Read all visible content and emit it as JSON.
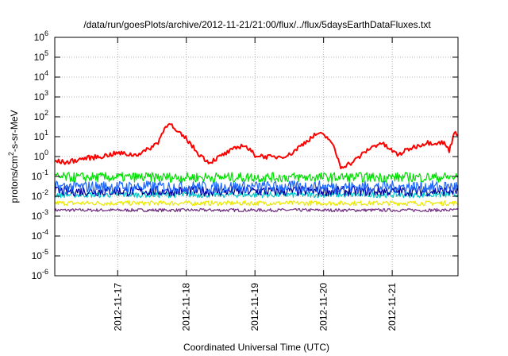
{
  "chart_data": {
    "type": "line",
    "title": "/data/run/goesPlots/archive/2012-11-21/21:00/flux/../flux/5daysEarthDataFluxes.txt",
    "xlabel": "Coordinated Universal Time (UTC)",
    "ylabel": {
      "base": "protons/cm",
      "sup": "2",
      "rest": "-s-sr-MeV"
    },
    "yscale": "log",
    "ylim": [
      "1e-6",
      "1e6"
    ],
    "yticks": [
      {
        "exp": "-6",
        "value": "1e-6"
      },
      {
        "exp": "-5",
        "value": "1e-5"
      },
      {
        "exp": "-4",
        "value": "1e-4"
      },
      {
        "exp": "-3",
        "value": "1e-3"
      },
      {
        "exp": "-2",
        "value": "1e-2"
      },
      {
        "exp": "-1",
        "value": "1e-1"
      },
      {
        "exp": "0",
        "value": "1"
      },
      {
        "exp": "1",
        "value": "1e1"
      },
      {
        "exp": "2",
        "value": "1e2"
      },
      {
        "exp": "3",
        "value": "1e3"
      },
      {
        "exp": "4",
        "value": "1e4"
      },
      {
        "exp": "5",
        "value": "1e5"
      },
      {
        "exp": "6",
        "value": "1e6"
      }
    ],
    "xlim": [
      "2012-11-16 02:00",
      "2012-11-21 23:00"
    ],
    "xticks": [
      "2012-11-17",
      "2012-11-18",
      "2012-11-19",
      "2012-11-20",
      "2012-11-21"
    ],
    "grid": true,
    "series": [
      {
        "color": "#ff0000",
        "x": [
          "2012-11-16 02:00",
          "2012-11-16 06:00",
          "2012-11-16 12:00",
          "2012-11-16 18:00",
          "2012-11-17 00:00",
          "2012-11-17 06:00",
          "2012-11-17 10:00",
          "2012-11-17 14:00",
          "2012-11-17 16:00",
          "2012-11-17 18:00",
          "2012-11-17 20:00",
          "2012-11-18 00:00",
          "2012-11-18 04:00",
          "2012-11-18 08:00",
          "2012-11-18 14:00",
          "2012-11-18 20:00",
          "2012-11-19 00:00",
          "2012-11-19 06:00",
          "2012-11-19 12:00",
          "2012-11-19 18:00",
          "2012-11-19 22:00",
          "2012-11-20 02:00",
          "2012-11-20 04:00",
          "2012-11-20 06:00",
          "2012-11-20 10:00",
          "2012-11-20 16:00",
          "2012-11-20 20:00",
          "2012-11-21 02:00",
          "2012-11-21 06:00",
          "2012-11-21 12:00",
          "2012-11-21 18:00",
          "2012-11-21 20:00",
          "2012-11-21 22:00",
          "2012-11-21 23:00"
        ],
        "y": [
          0.6,
          0.5,
          0.8,
          1.0,
          1.5,
          1.2,
          2,
          5,
          20,
          60,
          20,
          8,
          1.5,
          0.5,
          1.5,
          4,
          1.2,
          0.9,
          1.2,
          6,
          15,
          8,
          2,
          0.3,
          0.5,
          2.5,
          5,
          1.2,
          2.5,
          5,
          5,
          2,
          25,
          10
        ]
      },
      {
        "color": "#00e000",
        "x": [
          "2012-11-16 02:00",
          "2012-11-21 23:00"
        ],
        "y": [
          0.09,
          0.09
        ],
        "spread": 0.25
      },
      {
        "color": "#1a66ff",
        "x": [
          "2012-11-16 02:00",
          "2012-11-21 23:00"
        ],
        "y": [
          0.03,
          0.03
        ],
        "spread": 0.3
      },
      {
        "color": "#0000a0",
        "x": [
          "2012-11-16 02:00",
          "2012-11-21 23:00"
        ],
        "y": [
          0.018,
          0.018
        ],
        "spread": 0.25
      },
      {
        "color": "#00c8c8",
        "x": [
          "2012-11-16 02:00",
          "2012-11-21 23:00"
        ],
        "y": [
          0.012,
          0.012
        ],
        "spread": 0.15
      },
      {
        "color": "#e8e800",
        "x": [
          "2012-11-16 02:00",
          "2012-11-21 23:00"
        ],
        "y": [
          0.0045,
          0.0045
        ],
        "spread": 0.12
      },
      {
        "color": "#6e2a7e",
        "x": [
          "2012-11-16 02:00",
          "2012-11-21 23:00"
        ],
        "y": [
          0.002,
          0.002
        ],
        "spread": 0.08
      }
    ]
  }
}
